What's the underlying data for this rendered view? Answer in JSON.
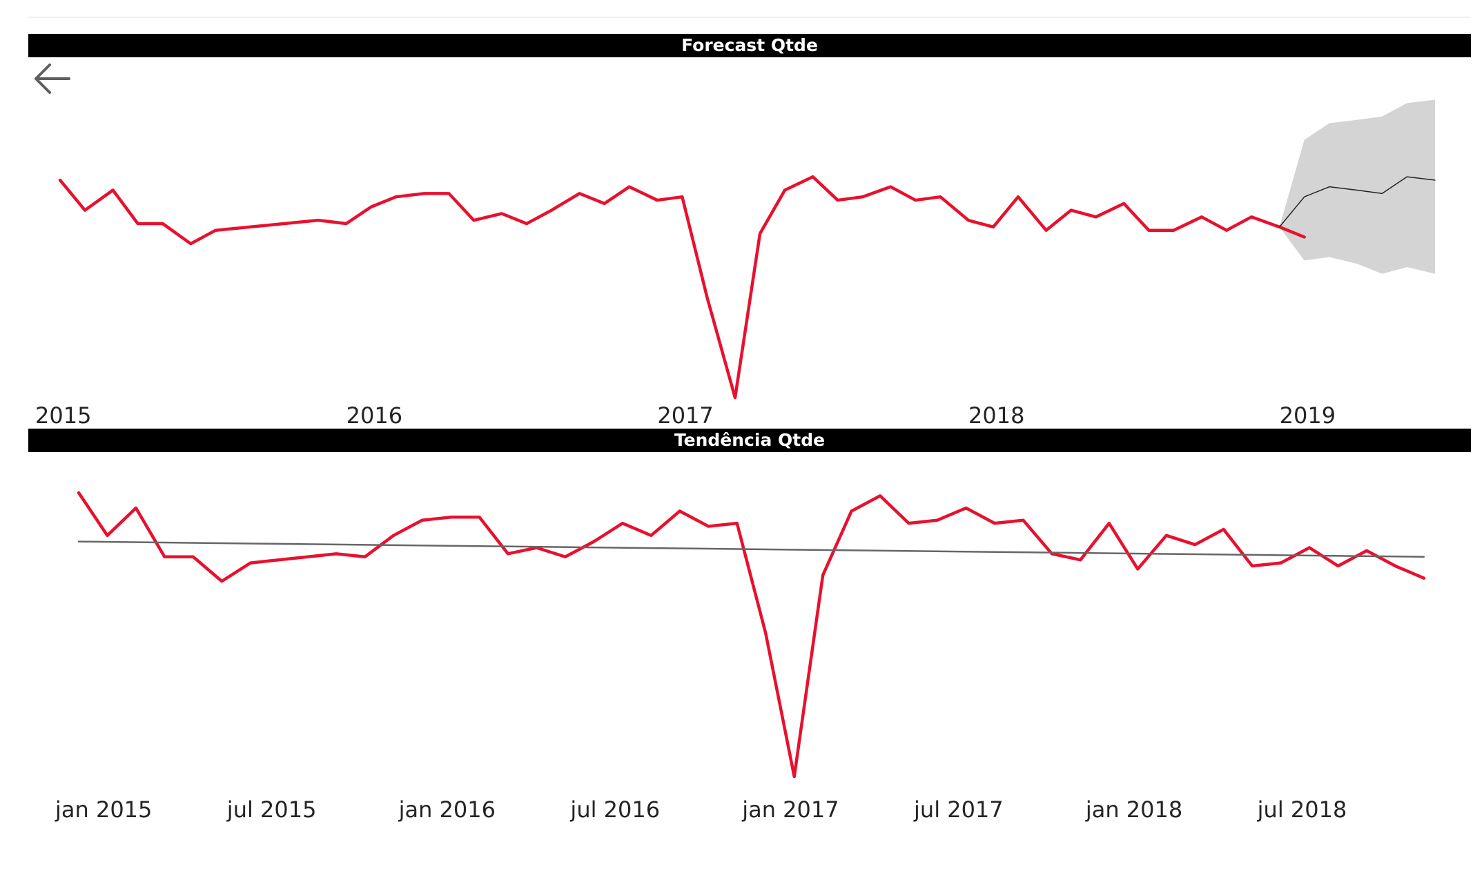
{
  "back_icon": "arrow-left-icon",
  "colors": {
    "actual": "#e8112d",
    "forecast": "#222222",
    "band": "#d4d4d4",
    "trend": "#666666",
    "title_bg": "#000000"
  },
  "chart_data": [
    {
      "type": "line",
      "title": "Forecast Qtde",
      "x_ticks": [
        "2015",
        "2016",
        "2017",
        "2018",
        "2019"
      ],
      "x_tick_positions": [
        2015,
        2016,
        2017,
        2018,
        2019
      ],
      "xlim": [
        2015,
        2019.44
      ],
      "ylim": [
        0,
        100
      ],
      "series": [
        {
          "values": [
            [
              2015.0,
              73
            ],
            [
              2015.08,
              64
            ],
            [
              2015.17,
              70
            ],
            [
              2015.25,
              60
            ],
            [
              2015.33,
              60
            ],
            [
              2015.42,
              54
            ],
            [
              2015.5,
              58
            ],
            [
              2015.83,
              61
            ],
            [
              2015.92,
              60
            ],
            [
              2016.0,
              65
            ],
            [
              2016.08,
              68
            ],
            [
              2016.17,
              69
            ],
            [
              2016.25,
              69
            ],
            [
              2016.33,
              61
            ],
            [
              2016.42,
              63
            ],
            [
              2016.5,
              60
            ],
            [
              2016.58,
              64
            ],
            [
              2016.67,
              69
            ],
            [
              2016.75,
              66
            ],
            [
              2016.83,
              71
            ],
            [
              2016.92,
              67
            ],
            [
              2017.0,
              68
            ],
            [
              2017.08,
              38
            ],
            [
              2017.17,
              8
            ],
            [
              2017.25,
              57
            ],
            [
              2017.33,
              70
            ],
            [
              2017.42,
              74
            ],
            [
              2017.5,
              67
            ],
            [
              2017.58,
              68
            ],
            [
              2017.67,
              71
            ],
            [
              2017.75,
              67
            ],
            [
              2017.83,
              68
            ],
            [
              2017.92,
              61
            ],
            [
              2018.0,
              59
            ],
            [
              2018.08,
              68
            ],
            [
              2018.17,
              58
            ],
            [
              2018.25,
              64
            ],
            [
              2018.33,
              62
            ],
            [
              2018.42,
              66
            ],
            [
              2018.5,
              58
            ],
            [
              2018.58,
              58
            ],
            [
              2018.67,
              62
            ],
            [
              2018.75,
              58
            ],
            [
              2018.83,
              62
            ],
            [
              2018.92,
              59
            ],
            [
              2019.0,
              56
            ]
          ]
        },
        {
          "values": [
            [
              2018.92,
              59
            ],
            [
              2019.0,
              68
            ],
            [
              2019.08,
              71
            ],
            [
              2019.17,
              70
            ],
            [
              2019.25,
              69
            ],
            [
              2019.33,
              74
            ],
            [
              2019.42,
              73
            ]
          ]
        }
      ],
      "band": [
        [
          2018.92,
          59,
          59
        ],
        [
          2019.0,
          85,
          49
        ],
        [
          2019.08,
          90,
          50
        ],
        [
          2019.17,
          91,
          48
        ],
        [
          2019.25,
          92,
          45
        ],
        [
          2019.33,
          96,
          47
        ],
        [
          2019.42,
          97,
          45
        ]
      ]
    },
    {
      "type": "line",
      "title": "Tendência Qtde",
      "x_ticks": [
        "jan 2015",
        "jul 2015",
        "jan 2016",
        "jul 2016",
        "jan 2017",
        "jul 2017",
        "jan 2018",
        "jul 2018"
      ],
      "x_tick_positions": [
        0,
        6,
        12,
        18,
        24,
        30,
        36,
        42
      ],
      "xlim": [
        0,
        47
      ],
      "ylim": [
        0,
        100
      ],
      "series": [
        {
          "values": [
            [
              0,
              93
            ],
            [
              1,
              79
            ],
            [
              2,
              88
            ],
            [
              3,
              72
            ],
            [
              4,
              72
            ],
            [
              5,
              64
            ],
            [
              6,
              70
            ],
            [
              9,
              73
            ],
            [
              10,
              72
            ],
            [
              11,
              79
            ],
            [
              12,
              84
            ],
            [
              13,
              85
            ],
            [
              14,
              85
            ],
            [
              15,
              73
            ],
            [
              16,
              75
            ],
            [
              17,
              72
            ],
            [
              18,
              77
            ],
            [
              19,
              83
            ],
            [
              20,
              79
            ],
            [
              21,
              87
            ],
            [
              22,
              82
            ],
            [
              23,
              83
            ],
            [
              24,
              47
            ],
            [
              25,
              0
            ],
            [
              26,
              66
            ],
            [
              27,
              87
            ],
            [
              28,
              92
            ],
            [
              29,
              83
            ],
            [
              30,
              84
            ],
            [
              31,
              88
            ],
            [
              32,
              83
            ],
            [
              33,
              84
            ],
            [
              34,
              73
            ],
            [
              35,
              71
            ],
            [
              36,
              83
            ],
            [
              37,
              68
            ],
            [
              38,
              79
            ],
            [
              39,
              76
            ],
            [
              40,
              81
            ],
            [
              41,
              69
            ],
            [
              42,
              70
            ],
            [
              43,
              75
            ],
            [
              44,
              69
            ],
            [
              45,
              74
            ],
            [
              46,
              69
            ],
            [
              47,
              65
            ]
          ]
        },
        {
          "values": [
            [
              0,
              77
            ],
            [
              47,
              72
            ]
          ]
        }
      ]
    }
  ]
}
